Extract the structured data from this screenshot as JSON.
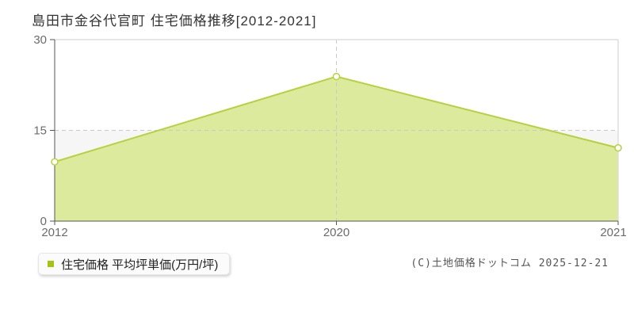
{
  "header": {
    "title": "島田市金谷代官町 住宅価格推移[2012-2021]"
  },
  "legend": {
    "label": "住宅価格 平均坪単価(万円/坪)",
    "marker_icon": "series-swatch-square",
    "marker_color": "#a2c513"
  },
  "footer": {
    "copyright": "(C)土地価格ドットコム 2025-12-21"
  },
  "chart_data": {
    "type": "area",
    "title": "島田市金谷代官町 住宅価格推移[2012-2021]",
    "categories": [
      "2012",
      "2020",
      "2021"
    ],
    "series": [
      {
        "name": "住宅価格 平均坪単価(万円/坪)",
        "values": [
          9.8,
          23.9,
          12.1
        ]
      }
    ],
    "ylabel": "",
    "xlabel": "",
    "ylim": [
      0,
      30
    ],
    "yticks": [
      0,
      15,
      30
    ],
    "grid": {
      "h_dashed": [
        15
      ],
      "v_dashed": [
        "2020"
      ]
    },
    "bands": [
      {
        "from": 0,
        "to": 15,
        "color": "#f6f6f6"
      }
    ],
    "legend_position": "bottom-left",
    "colors": {
      "line": "#b5d13e",
      "fill": "#dcea9d",
      "marker_fill": "#ffffff",
      "grid": "#c9c9c9",
      "frame_light": "#dedede",
      "axis": "#555555",
      "tick_label": "#6b6b6b"
    }
  }
}
